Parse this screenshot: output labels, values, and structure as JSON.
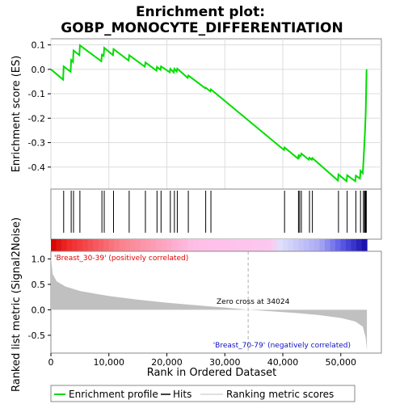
{
  "chart_data": {
    "type": "line",
    "title_line1": "Enrichment plot:",
    "title_line2": "GOBP_MONOCYTE_DIFFERENTIATION",
    "es_ylabel": "Enrichment score (ES)",
    "metric_ylabel": "Ranked list metric (Signal2Noise)",
    "xlabel": "Rank in Ordered Dataset",
    "x_ticks": [
      "0",
      "10,000",
      "20,000",
      "30,000",
      "40,000",
      "50,000"
    ],
    "x_tick_values": [
      0,
      10000,
      20000,
      30000,
      40000,
      50000
    ],
    "x_range": [
      0,
      57000
    ],
    "es_ticks": [
      "0.1",
      "0.0",
      "-0.1",
      "-0.2",
      "-0.3",
      "-0.4"
    ],
    "es_tick_values": [
      0.1,
      0.0,
      -0.1,
      -0.2,
      -0.3,
      -0.4
    ],
    "es_range": [
      -0.49,
      0.125
    ],
    "metric_ticks": [
      "1.0",
      "0.5",
      "0.0",
      "-0.5"
    ],
    "metric_tick_values": [
      1.0,
      0.5,
      0.0,
      -0.5
    ],
    "metric_range": [
      -0.85,
      1.15
    ],
    "positive_label": "'Breast_30-39' (positively correlated)",
    "negative_label": "'Breast_70-79' (negatively correlated)",
    "zero_cross_label": "Zero cross at 34024",
    "zero_cross": 34024,
    "n_genes": 54500,
    "hits": [
      2200,
      3500,
      3900,
      5000,
      8800,
      9200,
      10800,
      13500,
      16300,
      18300,
      19000,
      20600,
      21300,
      21800,
      23700,
      26700,
      27600,
      40300,
      42700,
      42900,
      43200,
      44600,
      45100,
      49600,
      51100,
      52600,
      53400,
      53900,
      54100,
      54200,
      54300,
      54400
    ],
    "es_points": [
      [
        0,
        0.0
      ],
      [
        2100,
        -0.042
      ],
      [
        2200,
        0.012
      ],
      [
        3400,
        -0.01
      ],
      [
        3500,
        0.038
      ],
      [
        3800,
        0.03
      ],
      [
        3900,
        0.077
      ],
      [
        4900,
        0.058
      ],
      [
        5000,
        0.098
      ],
      [
        8700,
        0.033
      ],
      [
        8800,
        0.06
      ],
      [
        9100,
        0.055
      ],
      [
        9200,
        0.088
      ],
      [
        10700,
        0.058
      ],
      [
        10800,
        0.083
      ],
      [
        13400,
        0.036
      ],
      [
        13500,
        0.058
      ],
      [
        16200,
        0.011
      ],
      [
        16300,
        0.028
      ],
      [
        18200,
        -0.005
      ],
      [
        18300,
        0.01
      ],
      [
        18900,
        -0.002
      ],
      [
        19000,
        0.012
      ],
      [
        20500,
        -0.012
      ],
      [
        20600,
        0.002
      ],
      [
        21200,
        -0.013
      ],
      [
        21300,
        0.002
      ],
      [
        21700,
        -0.009
      ],
      [
        21800,
        0.003
      ],
      [
        23600,
        -0.035
      ],
      [
        23700,
        -0.025
      ],
      [
        26600,
        -0.077
      ],
      [
        26700,
        -0.075
      ],
      [
        27500,
        -0.09
      ],
      [
        27600,
        -0.082
      ],
      [
        40200,
        -0.33
      ],
      [
        40300,
        -0.32
      ],
      [
        42600,
        -0.365
      ],
      [
        42700,
        -0.355
      ],
      [
        42800,
        -0.36
      ],
      [
        42900,
        -0.352
      ],
      [
        43100,
        -0.354
      ],
      [
        43200,
        -0.345
      ],
      [
        44500,
        -0.37
      ],
      [
        44600,
        -0.362
      ],
      [
        45000,
        -0.37
      ],
      [
        45100,
        -0.363
      ],
      [
        49500,
        -0.455
      ],
      [
        49600,
        -0.43
      ],
      [
        51000,
        -0.458
      ],
      [
        51100,
        -0.433
      ],
      [
        52500,
        -0.458
      ],
      [
        52600,
        -0.435
      ],
      [
        53300,
        -0.447
      ],
      [
        53400,
        -0.415
      ],
      [
        53800,
        -0.425
      ],
      [
        53900,
        -0.38
      ],
      [
        54000,
        -0.335
      ],
      [
        54100,
        -0.29
      ],
      [
        54200,
        -0.24
      ],
      [
        54300,
        -0.18
      ],
      [
        54350,
        -0.12
      ],
      [
        54400,
        -0.06
      ],
      [
        54450,
        0.0
      ]
    ],
    "metric_profile": [
      [
        0,
        1.05
      ],
      [
        300,
        0.7
      ],
      [
        1000,
        0.56
      ],
      [
        2500,
        0.46
      ],
      [
        5000,
        0.37
      ],
      [
        10000,
        0.27
      ],
      [
        15000,
        0.2
      ],
      [
        20000,
        0.14
      ],
      [
        25000,
        0.09
      ],
      [
        30000,
        0.045
      ],
      [
        34024,
        0.0
      ],
      [
        38000,
        -0.03
      ],
      [
        42000,
        -0.06
      ],
      [
        46000,
        -0.1
      ],
      [
        50000,
        -0.16
      ],
      [
        52500,
        -0.23
      ],
      [
        53800,
        -0.33
      ],
      [
        54300,
        -0.55
      ],
      [
        54500,
        -0.8
      ]
    ],
    "colors": {
      "es_line": "#00dd00",
      "hit_line": "#000000",
      "metric_fill": "#c0c0c0",
      "zero_cross_line": "#b0b0b0",
      "positive_text": "#e00000",
      "negative_text": "#1010c0",
      "zero_text": "#000000"
    },
    "legend": [
      {
        "label": "Enrichment profile",
        "kind": "es"
      },
      {
        "label": "Hits",
        "kind": "hit"
      },
      {
        "label": "Ranking metric scores",
        "kind": "metric"
      }
    ]
  }
}
